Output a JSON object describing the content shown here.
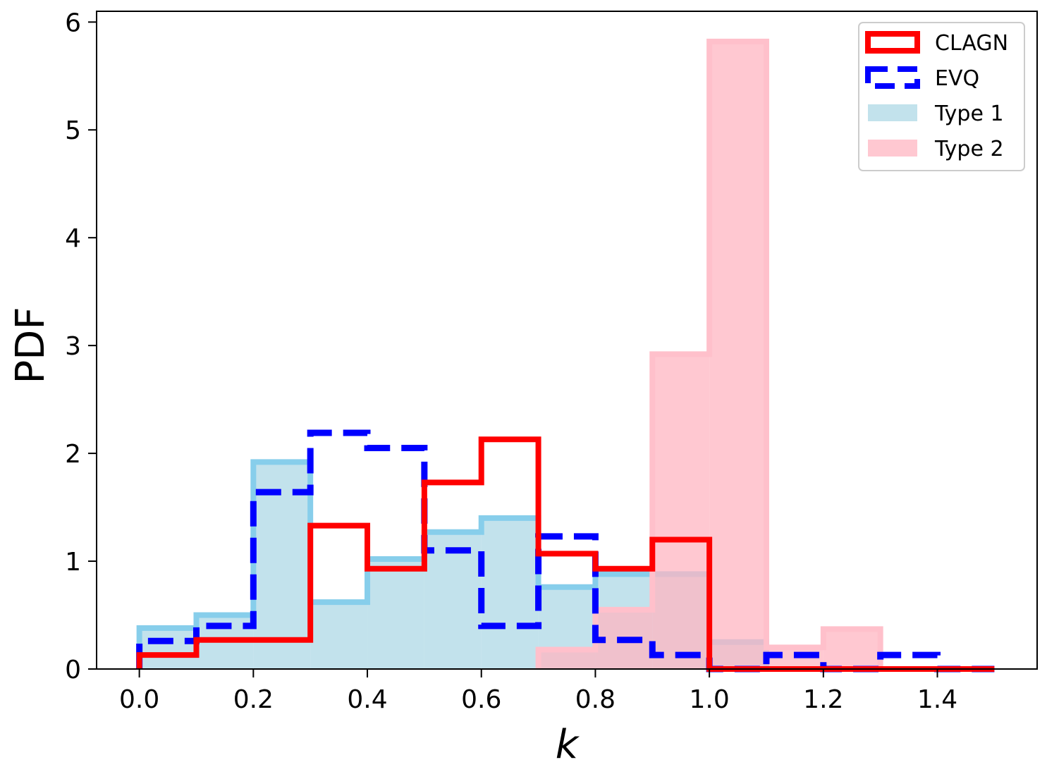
{
  "chart_data": {
    "type": "histogram",
    "title": "",
    "xlabel": "k",
    "ylabel": "PDF",
    "xlim": [
      -0.075,
      1.575
    ],
    "ylim": [
      0,
      6.1
    ],
    "xticks": [
      "0.0",
      "0.2",
      "0.4",
      "0.6",
      "0.8",
      "1.0",
      "1.2",
      "1.4"
    ],
    "yticks": [
      "0",
      "1",
      "2",
      "3",
      "4",
      "5",
      "6"
    ],
    "bin_edges": [
      0.0,
      0.1,
      0.2,
      0.3,
      0.4,
      0.5,
      0.6,
      0.7,
      0.8,
      0.9,
      1.0,
      1.1,
      1.2,
      1.3,
      1.4,
      1.5
    ],
    "legend_position": "top-right",
    "grid": false,
    "series": [
      {
        "name": "Type 1",
        "style": "filled",
        "fill_color": "#add8e6",
        "edge_color": "#87ceeb",
        "values": [
          0.38,
          0.5,
          1.92,
          0.62,
          1.02,
          1.27,
          1.4,
          0.76,
          0.88,
          0.88,
          0.25,
          0.0,
          0.0,
          0.0,
          0.0
        ]
      },
      {
        "name": "Type 2",
        "style": "filled",
        "fill_color": "#ffb6c1",
        "edge_color": "#ffc0cb",
        "values": [
          0.0,
          0.0,
          0.0,
          0.0,
          0.0,
          0.0,
          0.0,
          0.18,
          0.55,
          2.92,
          5.82,
          0.2,
          0.37,
          0.0,
          0.0
        ]
      },
      {
        "name": "EVQ",
        "style": "dashed-step",
        "edge_color": "#0000ff",
        "values": [
          0.26,
          0.4,
          1.64,
          2.19,
          2.05,
          1.1,
          0.4,
          1.23,
          0.27,
          0.13,
          0.0,
          0.13,
          0.0,
          0.13,
          0.0
        ]
      },
      {
        "name": "CLAGN",
        "style": "step",
        "edge_color": "#ff0000",
        "values": [
          0.13,
          0.27,
          0.27,
          1.33,
          0.93,
          1.73,
          2.13,
          1.07,
          0.93,
          1.2,
          0.0,
          0.0,
          0.0,
          0.0,
          0.0
        ]
      }
    ]
  }
}
